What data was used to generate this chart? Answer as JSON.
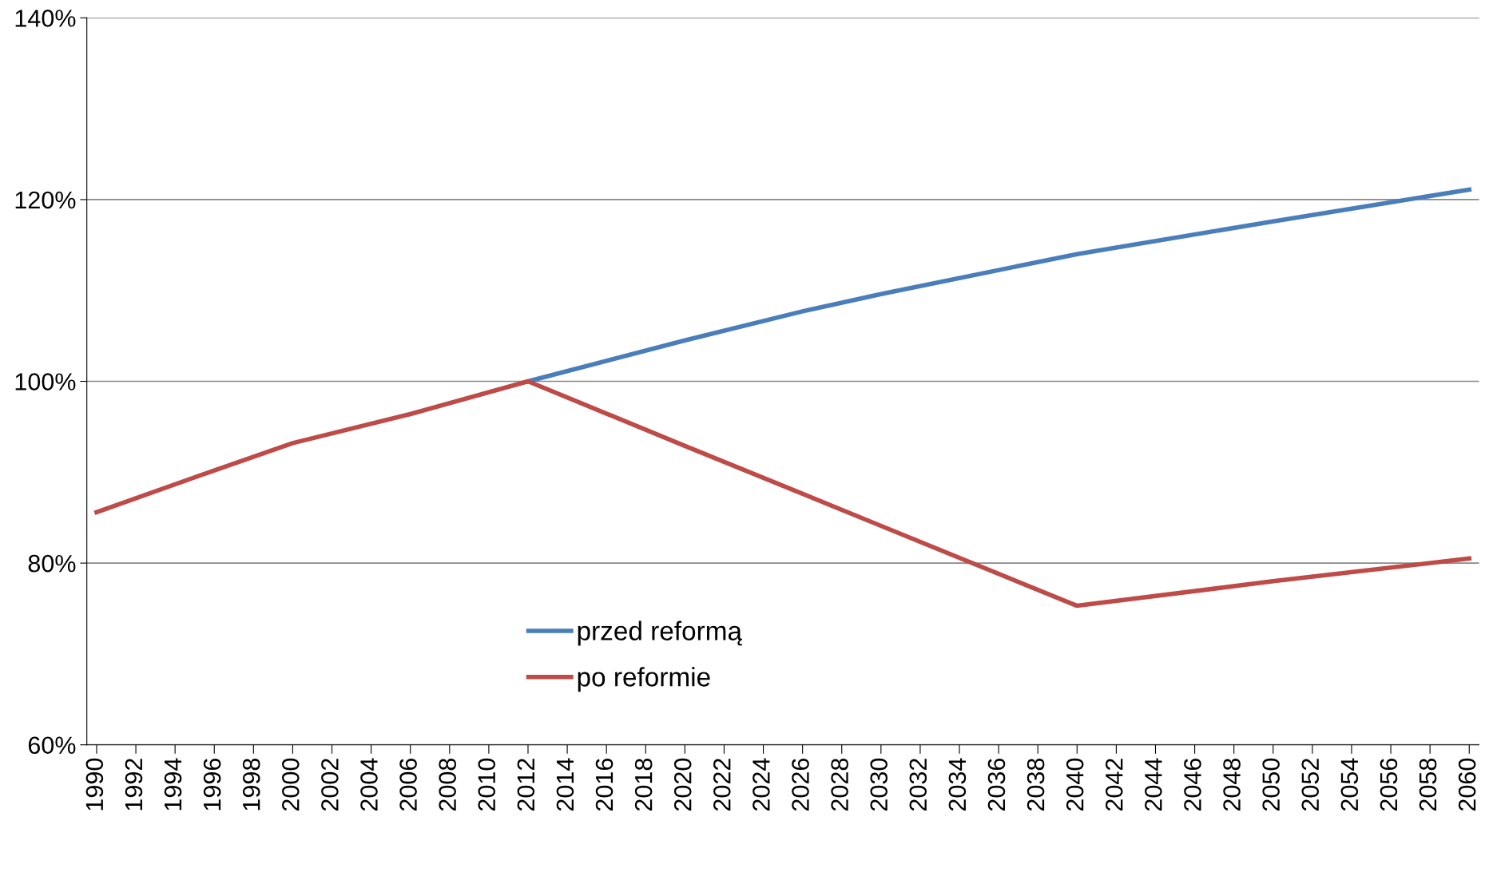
{
  "chart_data": {
    "type": "line",
    "xlim": [
      1989.5,
      2060.5
    ],
    "ylim": [
      60,
      140
    ],
    "xticks": [
      1990,
      1992,
      1994,
      1996,
      1998,
      2000,
      2002,
      2004,
      2006,
      2008,
      2010,
      2012,
      2014,
      2016,
      2018,
      2020,
      2022,
      2024,
      2026,
      2028,
      2030,
      2032,
      2034,
      2036,
      2038,
      2040,
      2042,
      2044,
      2046,
      2048,
      2050,
      2052,
      2054,
      2056,
      2058,
      2060
    ],
    "yticks": [
      {
        "value": 60,
        "label": "60%"
      },
      {
        "value": 80,
        "label": "80%"
      },
      {
        "value": 100,
        "label": "100%"
      },
      {
        "value": 120,
        "label": "120%"
      },
      {
        "value": 140,
        "label": "140%"
      }
    ],
    "grid": "y",
    "legend": "bottom",
    "marker": "none",
    "line_style": "solid",
    "series": [
      {
        "name": "przed reformą",
        "color": "#4a7ebb",
        "x": [
          2012,
          2020,
          2026,
          2030,
          2040,
          2050,
          2060
        ],
        "values": [
          100,
          104.5,
          107.7,
          109.6,
          114.0,
          117.6,
          121.1
        ]
      },
      {
        "name": "po reformie",
        "color": "#be4b48",
        "x": [
          1990,
          1996,
          2000,
          2006,
          2012,
          2020,
          2030,
          2040,
          2050,
          2060
        ],
        "values": [
          85.6,
          90.2,
          93.2,
          96.4,
          100,
          92.9,
          84.1,
          75.3,
          78.0,
          80.5
        ]
      }
    ]
  }
}
